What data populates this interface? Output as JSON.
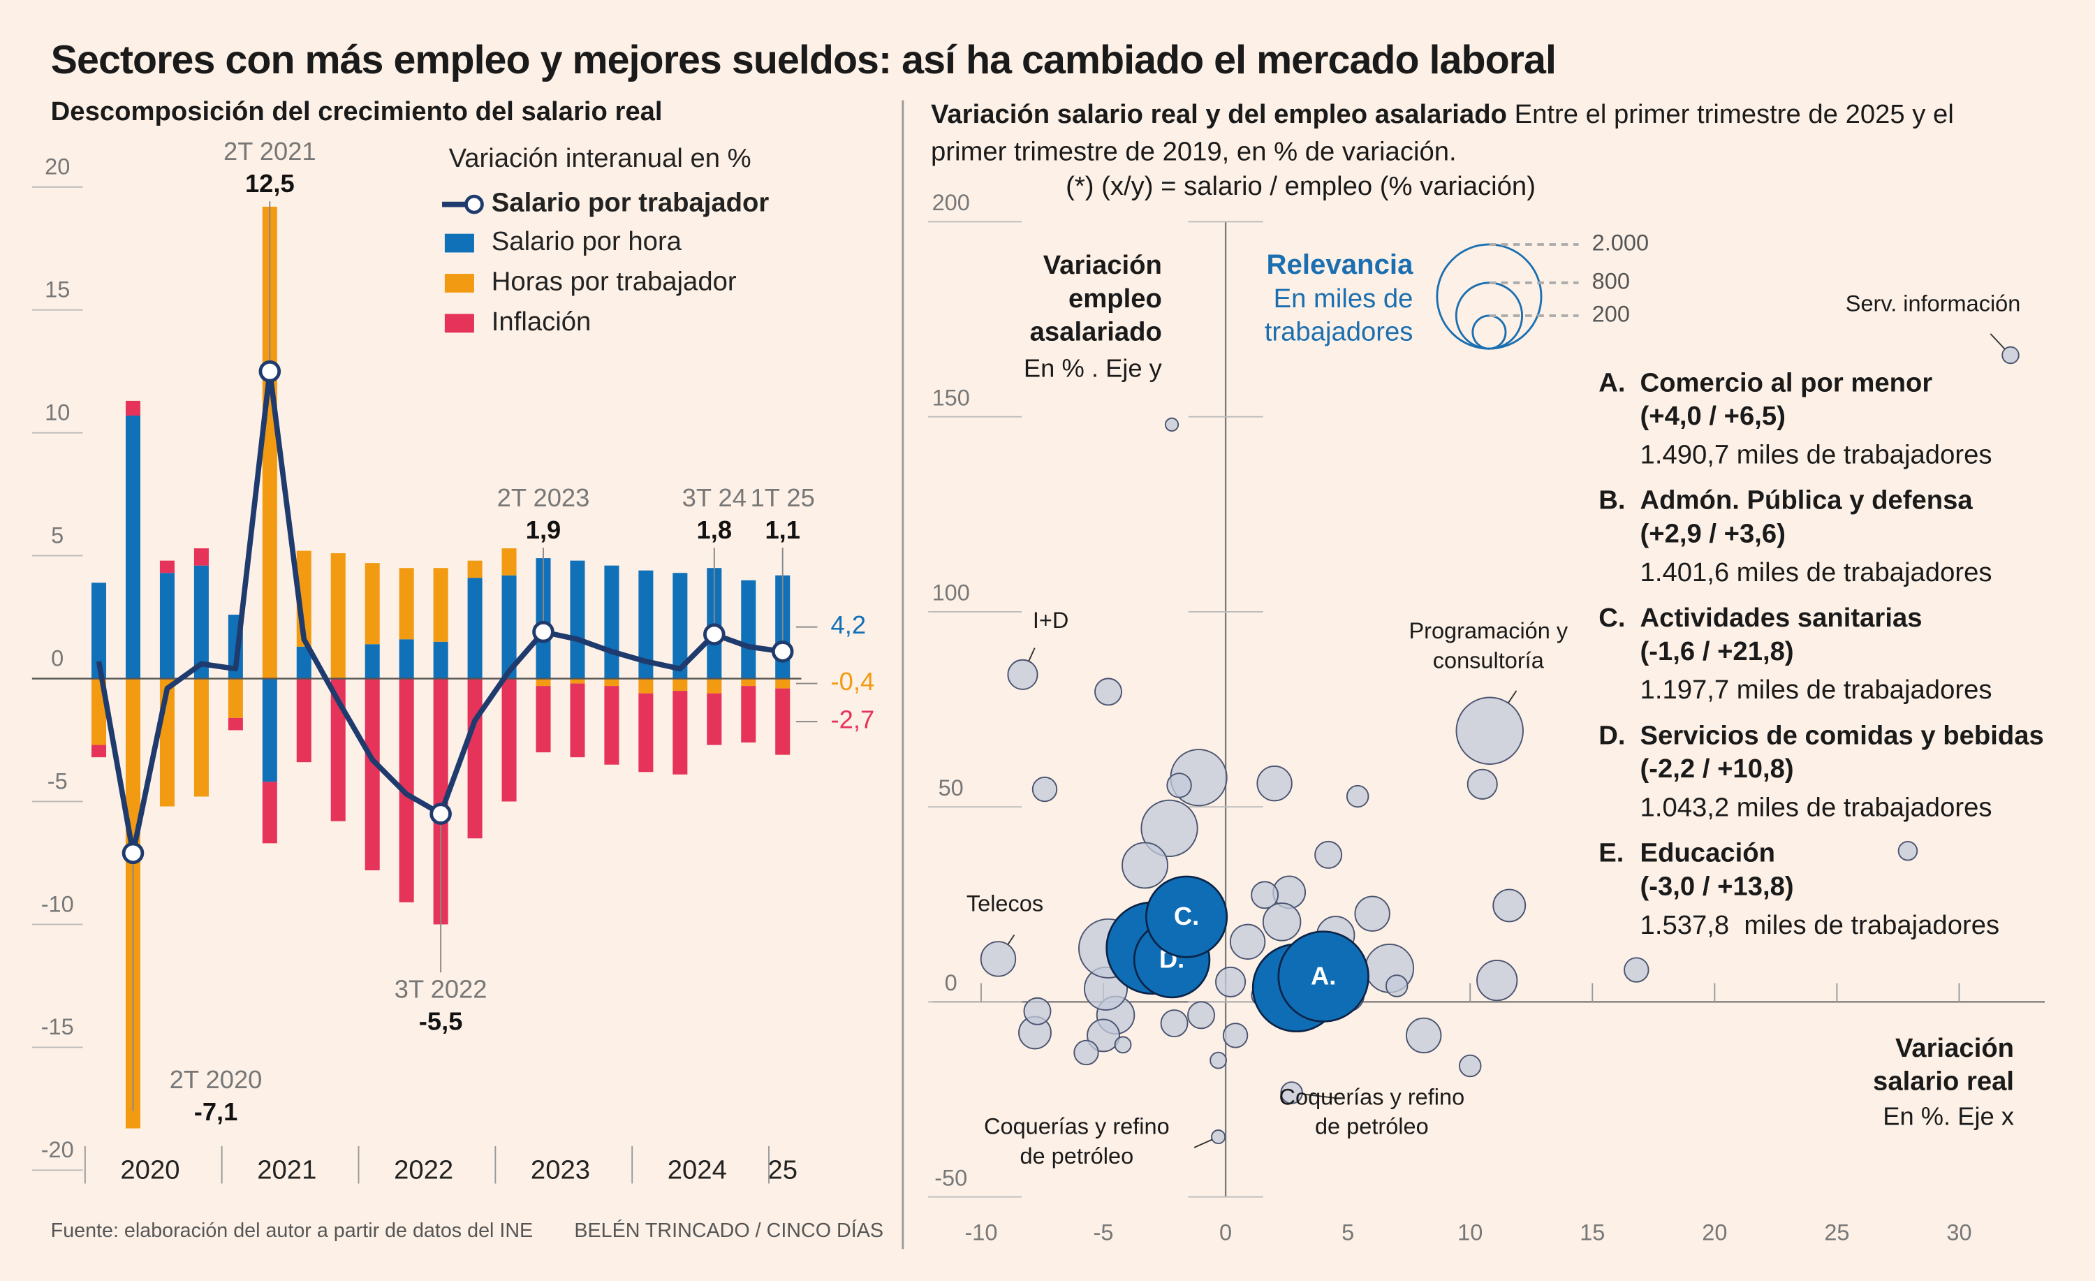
{
  "title": "Sectores con más empleo y mejores sueldos: así ha cambiado el mercado laboral",
  "source": "Fuente: elaboración del autor a partir de datos del INE",
  "credit": "BELÉN TRINCADO / CINCO DÍAS",
  "chart_data": [
    {
      "type": "bar",
      "stacked": true,
      "title": "Descomposición del crecimiento del salario real",
      "legend_title": "Variación interanual en %",
      "categories": [
        null,
        null,
        null,
        null,
        null,
        null,
        null,
        null,
        null,
        null,
        null,
        null,
        null,
        null,
        null,
        null,
        null,
        null,
        null,
        null,
        null
      ],
      "year_labels": [
        "2020",
        "2021",
        "2022",
        "2023",
        "2024",
        "25"
      ],
      "ylim": [
        -20,
        20
      ],
      "yticks": [
        -20,
        -15,
        -10,
        -5,
        0,
        5,
        10,
        15,
        20
      ],
      "series": [
        {
          "name": "Salario por trabajador",
          "type": "line",
          "color": "#1f3b6e",
          "values": [
            0.7,
            -7.1,
            -0.4,
            0.6,
            0.4,
            12.5,
            1.6,
            -0.9,
            -3.3,
            -4.7,
            -5.5,
            -1.7,
            0.3,
            1.9,
            1.6,
            1.1,
            0.7,
            0.4,
            1.8,
            1.3,
            1.1
          ],
          "point_labels": [
            null,
            "2T 2020",
            null,
            null,
            null,
            "2T 2021",
            null,
            null,
            null,
            null,
            "3T 2022",
            null,
            null,
            "2T 2023",
            null,
            null,
            null,
            null,
            "3T 24",
            null,
            "1T 25"
          ],
          "value_labels": [
            null,
            "-7,1",
            null,
            null,
            null,
            "12,5",
            null,
            null,
            null,
            null,
            "-5,5",
            null,
            null,
            "1,9",
            null,
            null,
            null,
            null,
            "1,8",
            null,
            "1,1"
          ]
        },
        {
          "name": "Salario por hora",
          "color": "#1070b8",
          "values": [
            3.9,
            10.7,
            4.3,
            4.6,
            2.6,
            -4.2,
            1.3,
            0,
            1.4,
            1.6,
            1.5,
            4.1,
            4.2,
            4.9,
            4.8,
            4.6,
            4.4,
            4.3,
            4.5,
            4.0,
            4.2
          ],
          "value_labels": [
            null,
            null,
            null,
            null,
            null,
            null,
            null,
            null,
            null,
            null,
            null,
            null,
            null,
            null,
            null,
            null,
            null,
            null,
            null,
            null,
            "4,2"
          ]
        },
        {
          "name": "Horas por trabajador",
          "color": "#f29a12",
          "values": [
            -2.7,
            -18.3,
            -5.2,
            -4.8,
            -1.6,
            19.2,
            3.9,
            5.1,
            3.3,
            2.9,
            3.0,
            0.7,
            1.1,
            -0.3,
            -0.2,
            -0.3,
            -0.6,
            -0.5,
            -0.6,
            -0.3,
            -0.4
          ],
          "value_labels": [
            null,
            null,
            null,
            null,
            null,
            null,
            null,
            null,
            null,
            null,
            null,
            null,
            null,
            null,
            null,
            null,
            null,
            null,
            null,
            null,
            "-0,4"
          ]
        },
        {
          "name": "Inflación",
          "color": "#e5335a",
          "values": [
            -0.5,
            0.6,
            0.5,
            0.7,
            -0.5,
            -2.5,
            -3.4,
            -5.8,
            -7.8,
            -9.1,
            -10.0,
            -6.5,
            -5.0,
            -2.7,
            -3.0,
            -3.2,
            -3.2,
            -3.4,
            -2.1,
            -2.3,
            -2.7
          ],
          "value_labels": [
            null,
            null,
            null,
            null,
            null,
            null,
            null,
            null,
            null,
            null,
            null,
            null,
            null,
            null,
            null,
            null,
            null,
            null,
            null,
            null,
            "-2,7"
          ]
        }
      ]
    },
    {
      "type": "scatter",
      "title": "Variación salario real y del empleo asalariado",
      "subtitle": "Entre el primer trimestre de 2025 y el primer trimestre de 2019, en % de variación.",
      "note": "(*) (x/y) = salario / empleo (% variación)",
      "y_label": "Variación empleo asalariado",
      "y_label_note": "En % . Eje y",
      "x_label": "Variación salario real",
      "x_label_note": "En %. Eje x",
      "xlim": [
        -12,
        33.5
      ],
      "ylim": [
        -50,
        200
      ],
      "xticks": [
        -10,
        -5,
        0,
        5,
        10,
        15,
        20,
        25,
        30
      ],
      "yticks": [
        -50,
        0,
        50,
        100,
        150,
        200
      ],
      "color": "#c3c9da",
      "highlight_color": "#0f6db5",
      "size_legend": {
        "title": "Relevancia",
        "subtitle": "En miles de trabajadores",
        "values": [
          2000,
          800,
          200
        ],
        "labels": [
          "2.000",
          "800",
          "200"
        ]
      },
      "points": {
        "x": [
          4.0,
          2.9,
          -1.6,
          -2.2,
          -3.0,
          32.1,
          -8.3,
          10.8,
          -9.3,
          -0.3,
          2.7,
          -2.2,
          -4.8,
          -1.1,
          -1.9,
          -7.4,
          2.0,
          5.4,
          10.5,
          -2.3,
          -3.3,
          4.2,
          11.6,
          27.9,
          16.8,
          11.1,
          8.1,
          10.0,
          -0.3,
          6.0,
          6.7,
          7.0,
          2.6,
          1.6,
          2.3,
          0.9,
          0.2,
          0.4,
          -2.1,
          -4.5,
          -5.0,
          -5.7,
          -4.2,
          -7.8,
          -7.7,
          -4.9,
          -4.8,
          -1.0,
          4.5,
          5.0,
          1.5
        ],
        "y": [
          6.5,
          3.6,
          21.8,
          10.8,
          13.8,
          165.8,
          83.9,
          69.5,
          11,
          -34.6,
          -23.3,
          148,
          79.5,
          57.5,
          55.5,
          54.5,
          56,
          52.7,
          55.8,
          44.5,
          35,
          37.7,
          24.7,
          38.7,
          8.2,
          5.5,
          -8.6,
          -16.4,
          -15,
          22.6,
          8.6,
          4.1,
          28.1,
          27.4,
          20.5,
          15.4,
          5.1,
          -8.6,
          -5.5,
          -3.4,
          -8.6,
          -13,
          -11,
          -7.9,
          -2.4,
          3.4,
          13.7,
          -3.4,
          17.1,
          1.7,
          1.7
        ],
        "size": [
          1490.7,
          1401.6,
          1197.7,
          1043.2,
          1537.8,
          50,
          160,
          820,
          220,
          33,
          84,
          30,
          130,
          580,
          107,
          107,
          220,
          84,
          160,
          580,
          380,
          130,
          190,
          64,
          107,
          296,
          220,
          84,
          47,
          220,
          426,
          84,
          190,
          130,
          258,
          220,
          160,
          107,
          130,
          258,
          190,
          107,
          47,
          190,
          130,
          336,
          636,
          130,
          258,
          190,
          84
        ],
        "labels": [
          "A.",
          "B.",
          "C.",
          "D.",
          "E.",
          "Serv. información",
          "I+D",
          "Programación y consultoría",
          "Telecos",
          "Coquerías y refino de petróleo",
          "Coquerías y refino de petróleo",
          null,
          null,
          null,
          null,
          null,
          null,
          null,
          null,
          null,
          null,
          null,
          null,
          null,
          null,
          null,
          null,
          null,
          null,
          null,
          null,
          null,
          null,
          null,
          null,
          null,
          null,
          null,
          null,
          null,
          null,
          null,
          null,
          null,
          null,
          null,
          null,
          null,
          null,
          null,
          null
        ]
      },
      "highlights": [
        {
          "letter": "A.",
          "name": "Comercio al por menor",
          "values": "(+4,0 / +6,5)",
          "workers": "1.490,7 miles de trabajadores"
        },
        {
          "letter": "B.",
          "name": "Admón. Pública y defensa",
          "values": "(+2,9 / +3,6)",
          "workers": "1.401,6 miles de trabajadores"
        },
        {
          "letter": "C.",
          "name": "Actividades sanitarias",
          "values": "(-1,6 / +21,8)",
          "workers": "1.197,7 miles de trabajadores"
        },
        {
          "letter": "D.",
          "name": "Servicios de comidas y bebidas",
          "values": "(-2,2 / +10,8)",
          "workers": "1.043,2 miles de trabajadores"
        },
        {
          "letter": "E.",
          "name": "Educación",
          "values": "(-3,0 / +13,8)",
          "workers": "1.537,8  miles de trabajadores"
        }
      ]
    }
  ]
}
